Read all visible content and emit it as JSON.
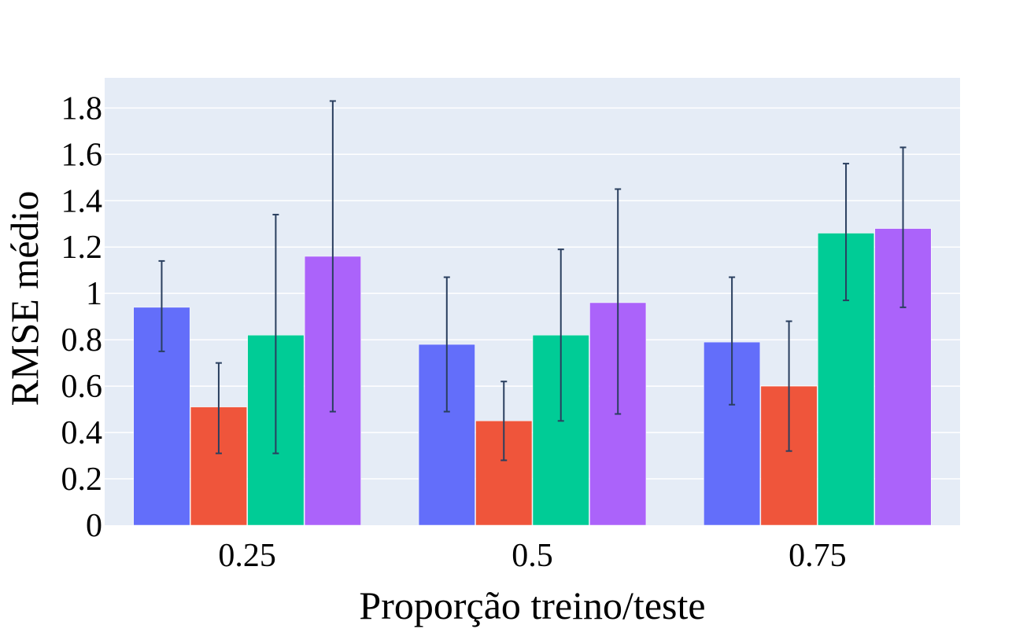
{
  "chart_data": {
    "type": "bar",
    "title": "",
    "xlabel": "Proporção treino/teste",
    "ylabel": "RMSE médio",
    "categories": [
      "0.25",
      "0.5",
      "0.75"
    ],
    "ylim": [
      0,
      1.93
    ],
    "yticks": [
      0,
      0.2,
      0.4,
      0.6,
      0.8,
      1,
      1.2,
      1.4,
      1.6,
      1.8
    ],
    "ytick_labels": [
      "0",
      "0.2",
      "0.4",
      "0.6",
      "0.8",
      "1",
      "1.2",
      "1.4",
      "1.6",
      "1.8"
    ],
    "grid": true,
    "legend": "none",
    "colors": {
      "plot_background": "#E5ECF6",
      "grid": "#FFFFFF",
      "error_bar": "#2A3F5F"
    },
    "series": [
      {
        "color": "#636EFA",
        "values": [
          0.94,
          0.78,
          0.79
        ],
        "error_low": [
          0.75,
          0.49,
          0.52
        ],
        "error_high": [
          1.14,
          1.07,
          1.07
        ]
      },
      {
        "color": "#EF553B",
        "values": [
          0.51,
          0.45,
          0.6
        ],
        "error_low": [
          0.31,
          0.28,
          0.32
        ],
        "error_high": [
          0.7,
          0.62,
          0.88
        ]
      },
      {
        "color": "#00CC96",
        "values": [
          0.82,
          0.82,
          1.26
        ],
        "error_low": [
          0.31,
          0.45,
          0.97
        ],
        "error_high": [
          1.34,
          1.19,
          1.56
        ]
      },
      {
        "color": "#AB63FA",
        "values": [
          1.16,
          0.96,
          1.28
        ],
        "error_low": [
          0.49,
          0.48,
          0.94
        ],
        "error_high": [
          1.83,
          1.45,
          1.63
        ]
      }
    ]
  }
}
